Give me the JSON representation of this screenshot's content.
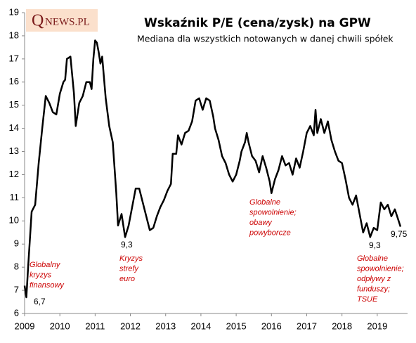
{
  "chart_data": {
    "type": "line",
    "logo": {
      "initial": "Q",
      "rest": "NEWS.PL"
    },
    "title": "Wskaźnik P/E (cena/zysk) na GPW",
    "subtitle": "Mediana dla wszystkich notowanych w danej chwili spółek",
    "xlim": [
      2009,
      2019.86
    ],
    "xticks": [
      2009,
      2010,
      2011,
      2012,
      2013,
      2014,
      2015,
      2016,
      2017,
      2018,
      2019
    ],
    "ylim": [
      6,
      19
    ],
    "yticks": [
      6,
      7,
      8,
      9,
      10,
      11,
      12,
      13,
      14,
      15,
      16,
      17,
      18,
      19
    ],
    "grid": false,
    "series": [
      {
        "color": "#000000",
        "x": [
          2009.0,
          2009.05,
          2009.1,
          2009.2,
          2009.3,
          2009.4,
          2009.5,
          2009.6,
          2009.7,
          2009.8,
          2009.9,
          2010.0,
          2010.1,
          2010.15,
          2010.2,
          2010.3,
          2010.4,
          2010.45,
          2010.55,
          2010.65,
          2010.75,
          2010.85,
          2010.9,
          2010.95,
          2011.0,
          2011.05,
          2011.1,
          2011.15,
          2011.2,
          2011.3,
          2011.4,
          2011.5,
          2011.6,
          2011.65,
          2011.75,
          2011.85,
          2011.95,
          2012.05,
          2012.15,
          2012.25,
          2012.35,
          2012.45,
          2012.55,
          2012.65,
          2012.75,
          2012.85,
          2012.95,
          2013.05,
          2013.15,
          2013.2,
          2013.3,
          2013.35,
          2013.45,
          2013.55,
          2013.65,
          2013.75,
          2013.85,
          2013.95,
          2014.05,
          2014.15,
          2014.25,
          2014.35,
          2014.4,
          2014.5,
          2014.6,
          2014.7,
          2014.8,
          2014.9,
          2015.0,
          2015.1,
          2015.15,
          2015.25,
          2015.3,
          2015.35,
          2015.45,
          2015.55,
          2015.65,
          2015.75,
          2015.85,
          2015.95,
          2016.0,
          2016.1,
          2016.2,
          2016.3,
          2016.4,
          2016.5,
          2016.6,
          2016.7,
          2016.8,
          2016.9,
          2017.0,
          2017.1,
          2017.2,
          2017.25,
          2017.3,
          2017.4,
          2017.5,
          2017.6,
          2017.7,
          2017.8,
          2017.9,
          2018.0,
          2018.1,
          2018.2,
          2018.3,
          2018.4,
          2018.5,
          2018.6,
          2018.7,
          2018.8,
          2018.9,
          2019.0,
          2019.1,
          2019.2,
          2019.3,
          2019.4,
          2019.5,
          2019.66
        ],
        "values": [
          7.2,
          6.7,
          8.0,
          10.4,
          10.7,
          12.5,
          14.0,
          15.4,
          15.1,
          14.7,
          14.6,
          15.5,
          16.0,
          16.1,
          17.0,
          17.1,
          15.5,
          14.1,
          15.1,
          15.4,
          16.0,
          16.0,
          15.7,
          17.0,
          17.8,
          17.7,
          17.3,
          16.8,
          17.1,
          15.3,
          14.1,
          13.4,
          11.2,
          9.8,
          10.3,
          9.3,
          9.8,
          10.6,
          11.4,
          11.4,
          10.8,
          10.2,
          9.6,
          9.7,
          10.2,
          10.6,
          10.9,
          11.3,
          11.6,
          12.9,
          12.9,
          13.7,
          13.3,
          13.8,
          13.9,
          14.3,
          15.2,
          15.3,
          14.8,
          15.3,
          15.2,
          14.5,
          14.0,
          13.5,
          12.8,
          12.5,
          12.0,
          11.7,
          12.0,
          12.6,
          13.0,
          13.4,
          13.8,
          13.4,
          12.8,
          12.6,
          12.1,
          12.8,
          12.3,
          11.7,
          11.2,
          11.8,
          12.2,
          12.8,
          12.4,
          12.5,
          12.0,
          12.7,
          12.3,
          13.0,
          13.8,
          14.1,
          13.7,
          14.8,
          13.8,
          14.4,
          13.8,
          14.3,
          13.5,
          13.0,
          12.6,
          12.5,
          11.8,
          11.0,
          10.7,
          11.1,
          10.3,
          9.5,
          9.9,
          9.3,
          9.7,
          9.6,
          10.8,
          10.5,
          10.7,
          10.2,
          10.5,
          9.75
        ]
      }
    ],
    "labels": [
      "6,7",
      "9,3",
      "9,3",
      "9,75"
    ],
    "annotations": [
      [
        "Globalny",
        "kryzys",
        "finansowy"
      ],
      [
        "Kryzys",
        "strefy",
        "euro"
      ],
      [
        "Globalne",
        "spowolnienie;",
        "obawy",
        "powyborcze"
      ],
      [
        "Globalne",
        "spowolnienie;",
        "odpływy z",
        "funduszy;",
        "TSUE"
      ]
    ]
  }
}
